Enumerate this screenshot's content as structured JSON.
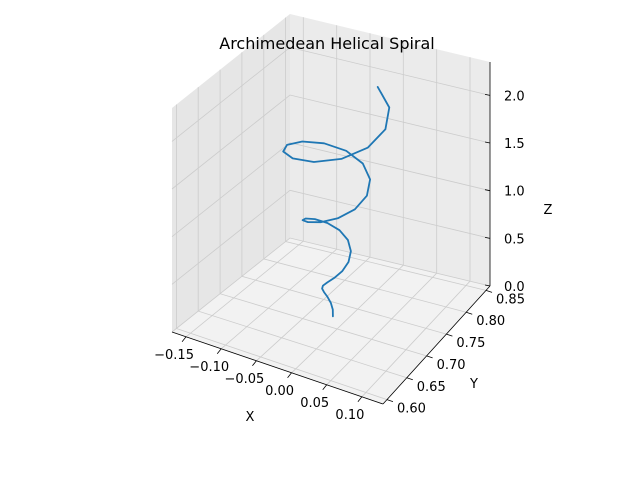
{
  "chart_data": {
    "type": "line",
    "title": "Archimedean Helical Spiral",
    "xlabel": "X",
    "ylabel": "Y",
    "zlabel": "Z",
    "xlim": [
      -0.17,
      0.13
    ],
    "ylim": [
      0.59,
      0.86
    ],
    "zlim": [
      0.0,
      2.35
    ],
    "x_ticks": [
      "−0.15",
      "−0.10",
      "−0.05",
      "0.00",
      "0.05",
      "0.10"
    ],
    "x_tick_values": [
      -0.15,
      -0.1,
      -0.05,
      0.0,
      0.05,
      0.1
    ],
    "y_ticks": [
      "0.60",
      "0.65",
      "0.70",
      "0.75",
      "0.80",
      "0.85"
    ],
    "y_tick_values": [
      0.6,
      0.65,
      0.7,
      0.75,
      0.8,
      0.85
    ],
    "z_ticks": [
      "0.0",
      "0.5",
      "1.0",
      "1.5",
      "2.0"
    ],
    "z_tick_values": [
      0.0,
      0.5,
      1.0,
      1.5,
      2.0
    ],
    "grid": true,
    "series_color": "#1f77b4",
    "pane_color": "#f2f2f2",
    "grid_color": "#cccccc"
  }
}
